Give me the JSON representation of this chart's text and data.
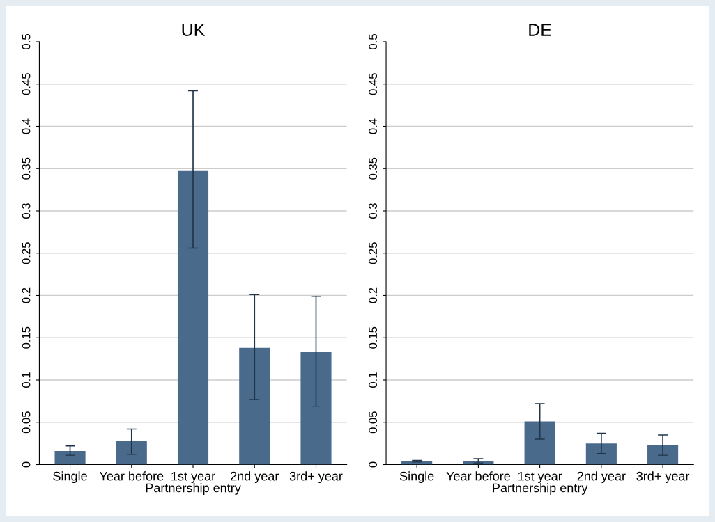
{
  "chart_data": [
    {
      "type": "bar",
      "title": "UK",
      "xlabel": "Partnership entry",
      "categories": [
        "Single",
        "Year before",
        "1st year",
        "2nd year",
        "3rd+ year"
      ],
      "values": [
        0.016,
        0.028,
        0.348,
        0.138,
        0.133
      ],
      "errors": [
        [
          0.011,
          0.022
        ],
        [
          0.012,
          0.042
        ],
        [
          0.256,
          0.442
        ],
        [
          0.077,
          0.201
        ],
        [
          0.069,
          0.199
        ]
      ],
      "color": "#4a6a8c",
      "ylim": [
        0,
        0.5
      ],
      "yticks": [
        0,
        0.05,
        0.1,
        0.15,
        0.2,
        0.25,
        0.3,
        0.35,
        0.4,
        0.45,
        0.5
      ],
      "grid": "y"
    },
    {
      "type": "bar",
      "title": "DE",
      "xlabel": "Partnership entry",
      "categories": [
        "Single",
        "Year before",
        "1st year",
        "2nd year",
        "3rd+ year"
      ],
      "values": [
        0.004,
        0.004,
        0.051,
        0.025,
        0.023
      ],
      "errors": [
        [
          0.003,
          0.005
        ],
        [
          0.002,
          0.007
        ],
        [
          0.03,
          0.072
        ],
        [
          0.013,
          0.037
        ],
        [
          0.011,
          0.035
        ]
      ],
      "color": "#4a6a8c",
      "ylim": [
        0,
        0.5
      ],
      "yticks": [
        0,
        0.05,
        0.1,
        0.15,
        0.2,
        0.25,
        0.3,
        0.35,
        0.4,
        0.45,
        0.5
      ],
      "grid": "y"
    }
  ]
}
